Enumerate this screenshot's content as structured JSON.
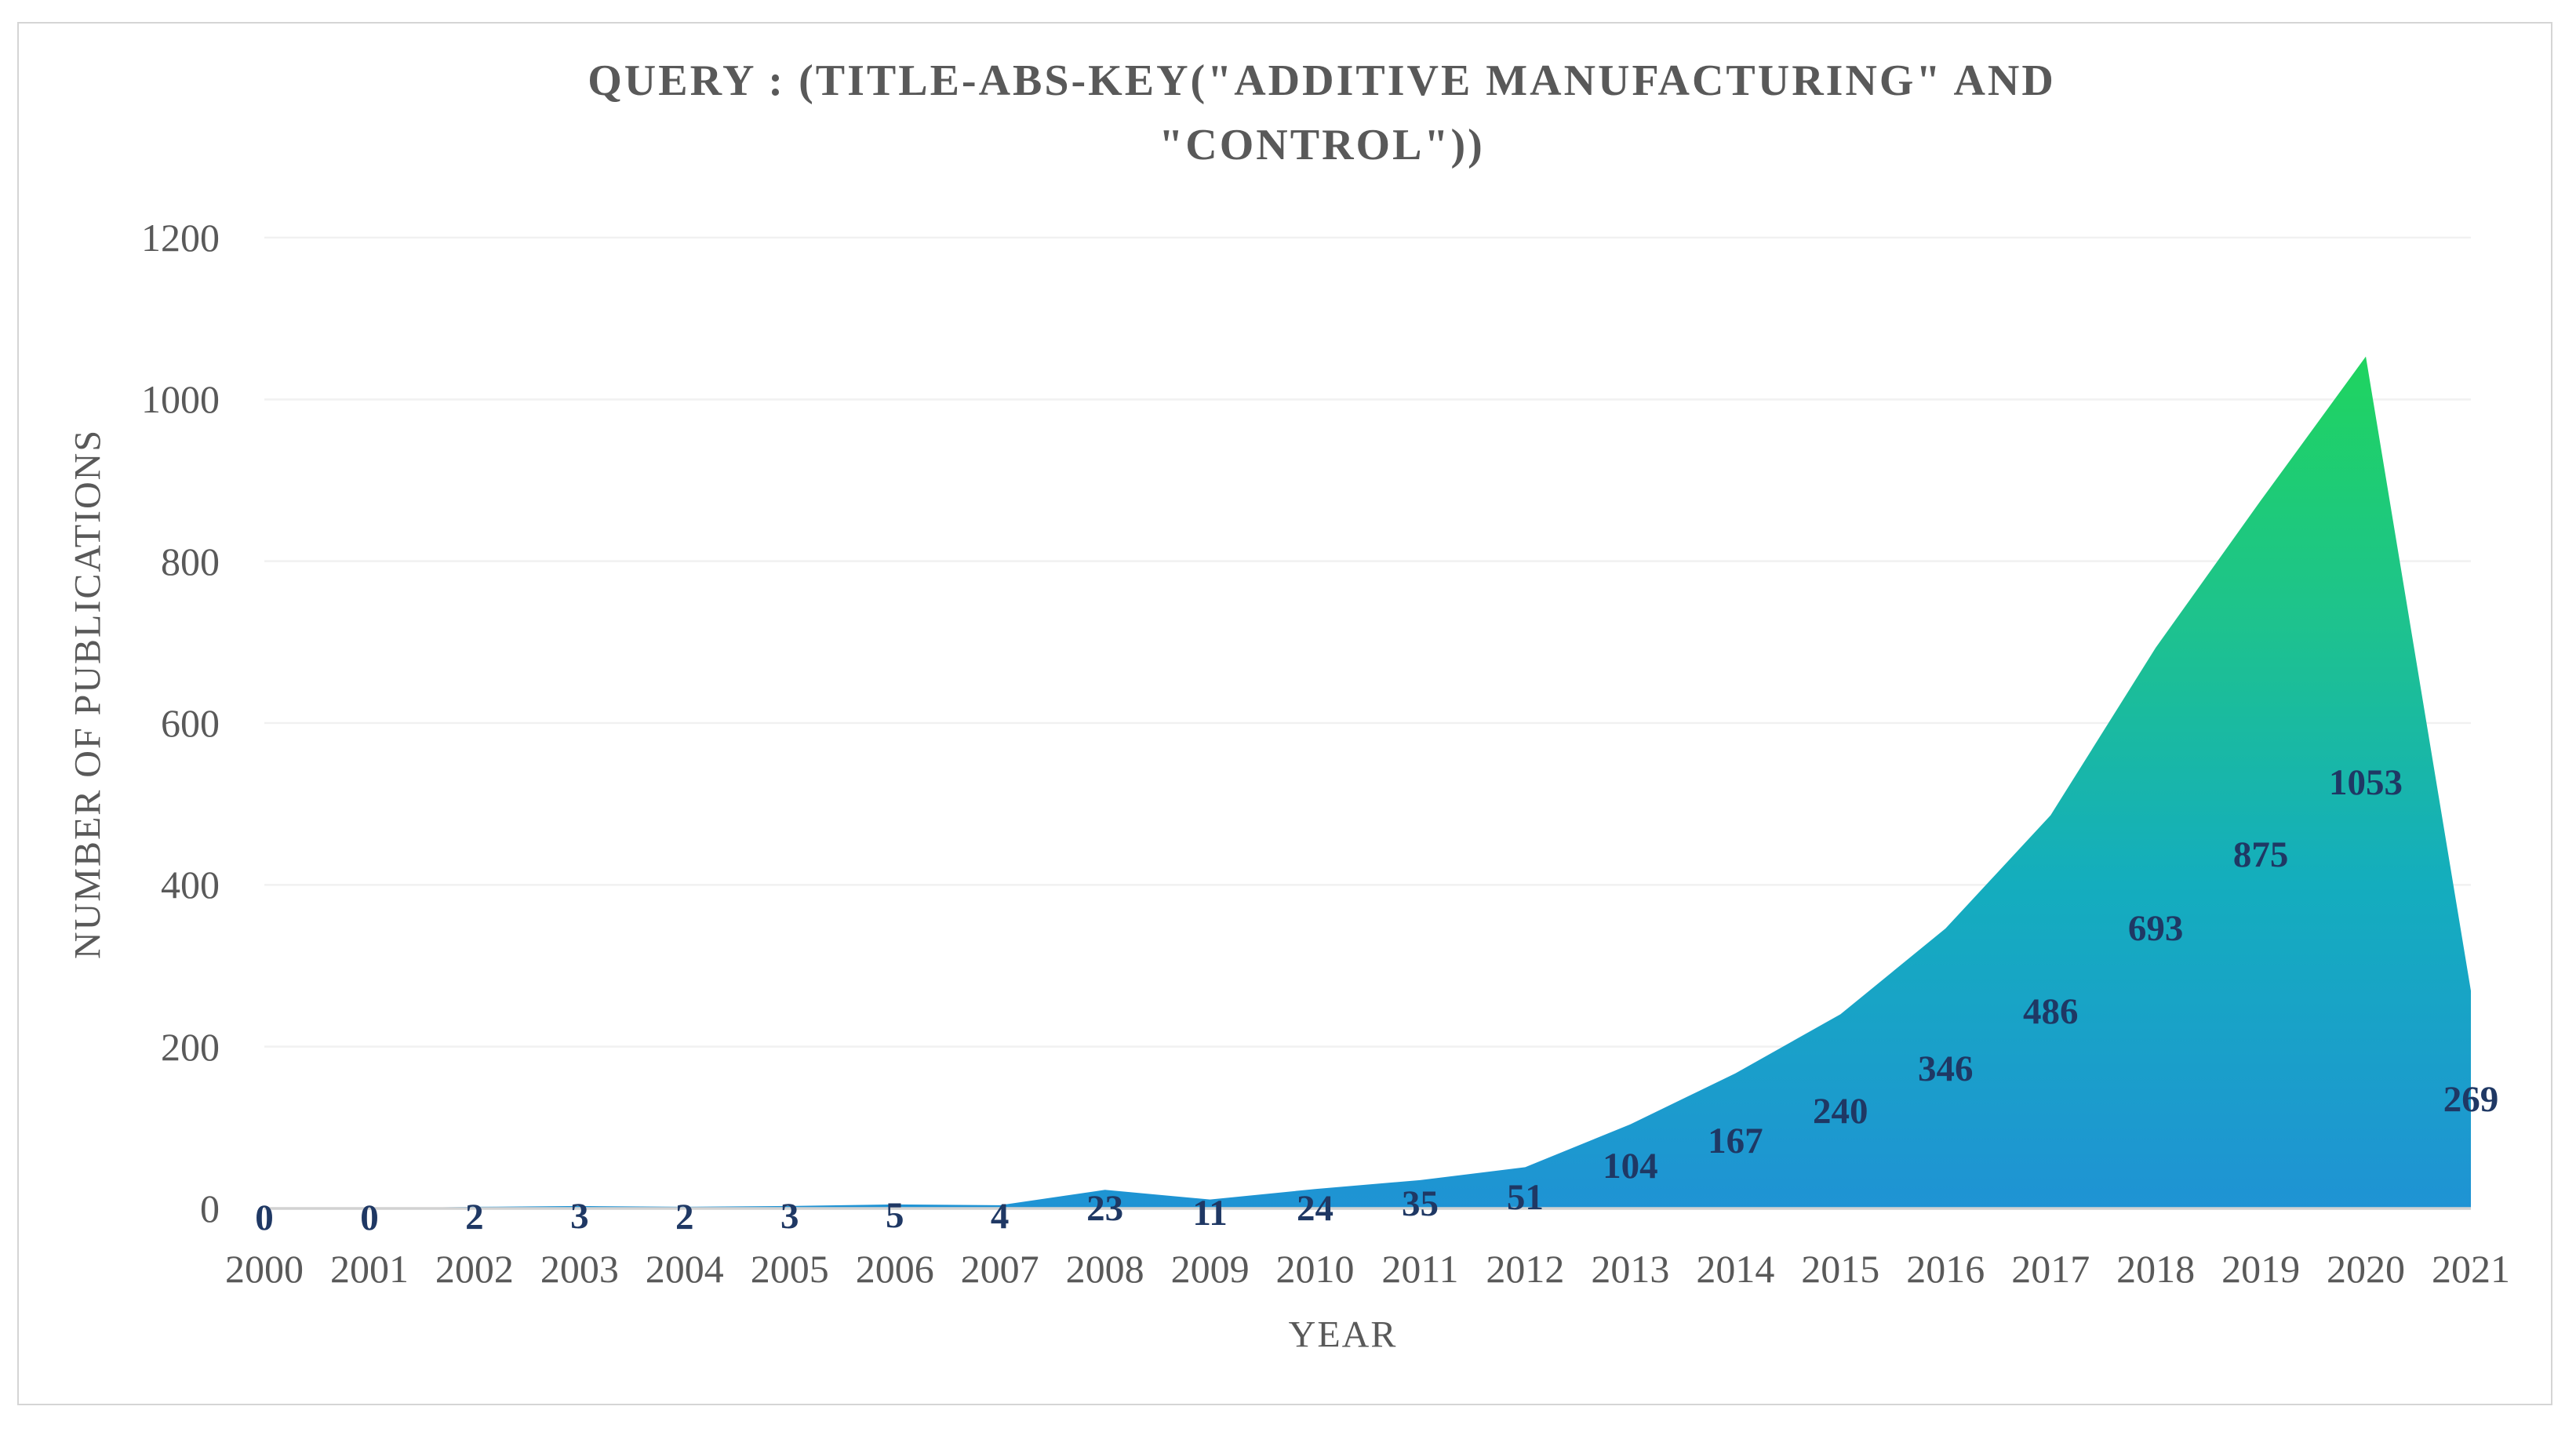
{
  "figure": {
    "title_line1": "QUERY : (TITLE-ABS-KEY(\"ADDITIVE MANUFACTURING\" AND",
    "title_line2": "\"CONTROL\"))"
  },
  "chart_data": {
    "type": "area",
    "title": "QUERY : (TITLE-ABS-KEY(\"ADDITIVE MANUFACTURING\" AND \"CONTROL\"))",
    "xlabel": "YEAR",
    "ylabel": "NUMBER OF PUBLICATIONS",
    "categories": [
      "2000",
      "2001",
      "2002",
      "2003",
      "2004",
      "2005",
      "2006",
      "2007",
      "2008",
      "2009",
      "2010",
      "2011",
      "2012",
      "2013",
      "2014",
      "2015",
      "2016",
      "2017",
      "2018",
      "2019",
      "2020",
      "2021"
    ],
    "values": [
      0,
      0,
      2,
      3,
      2,
      3,
      5,
      4,
      23,
      11,
      24,
      35,
      51,
      104,
      167,
      240,
      346,
      486,
      693,
      875,
      1053,
      269
    ],
    "ylim": [
      0,
      1200
    ],
    "yticks": [
      0,
      200,
      400,
      600,
      800,
      1000,
      1200
    ],
    "grid": true,
    "legend": "none",
    "data_labels_position": "center",
    "colors": {
      "label_text": "#1f3864",
      "axis_text": "#595959",
      "gridline": "#f1f1f1",
      "axis_line": "#d2d2d2",
      "border": "#d5d5d5",
      "gradient": [
        {
          "offset": "0%",
          "color": "#1fd45f"
        },
        {
          "offset": "30%",
          "color": "#1ec38c"
        },
        {
          "offset": "62%",
          "color": "#14adbe"
        },
        {
          "offset": "100%",
          "color": "#1f93d4"
        }
      ]
    }
  }
}
